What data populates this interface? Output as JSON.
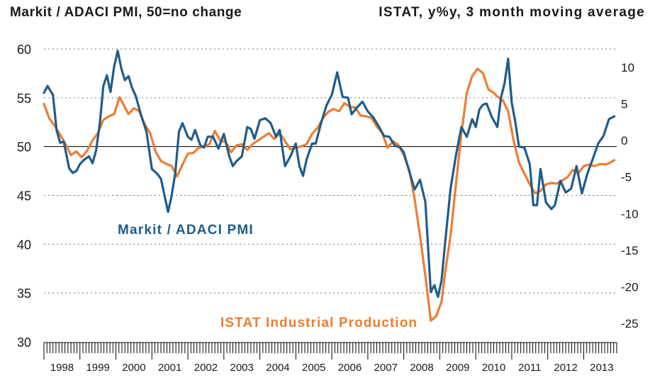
{
  "chart_data": {
    "type": "line",
    "title_left": "Markit / ADACI PMI, 50=no change",
    "title_right": "ISTAT, y%y, 3 month moving average",
    "left_axis": {
      "ylim": [
        30,
        60
      ],
      "ticks": [
        30,
        35,
        40,
        45,
        50,
        55,
        60
      ]
    },
    "right_axis": {
      "ylim": [
        -27.5,
        12.5
      ],
      "ticks": [
        10,
        5,
        0,
        -5,
        -10,
        -15,
        -20,
        -25
      ]
    },
    "x_range": [
      1998.0,
      2013.917
    ],
    "x_ticks": [
      "1998",
      "1999",
      "2000",
      "2001",
      "2002",
      "2003",
      "2004",
      "2005",
      "2006",
      "2007",
      "2008",
      "2009",
      "2010",
      "2011",
      "2012",
      "2013"
    ],
    "grid": true,
    "reference_line": {
      "axis": "left",
      "value": 50
    },
    "colors": {
      "pmi": "#1f5c8c",
      "ip": "#ed7d31",
      "text": "#1a1a1a",
      "grid": "#777777"
    },
    "series": [
      {
        "name": "Markit / ADACI PMI",
        "axis": "left",
        "label_text": "Markit / ADACI PMI",
        "x": [
          1998.0,
          1998.1,
          1998.25,
          1998.35,
          1998.45,
          1998.55,
          1998.7,
          1998.8,
          1998.9,
          1999.0,
          1999.1,
          1999.25,
          1999.35,
          1999.45,
          1999.55,
          1999.65,
          1999.75,
          1999.85,
          1999.95,
          2000.05,
          2000.15,
          2000.25,
          2000.35,
          2000.45,
          2000.55,
          2000.7,
          2000.85,
          2001.0,
          2001.15,
          2001.25,
          2001.35,
          2001.45,
          2001.55,
          2001.65,
          2001.75,
          2001.85,
          2002.0,
          2002.1,
          2002.2,
          2002.35,
          2002.45,
          2002.55,
          2002.7,
          2002.85,
          2003.0,
          2003.15,
          2003.25,
          2003.35,
          2003.5,
          2003.65,
          2003.75,
          2003.85,
          2004.0,
          2004.15,
          2004.3,
          2004.45,
          2004.55,
          2004.7,
          2004.85,
          2005.0,
          2005.1,
          2005.2,
          2005.3,
          2005.45,
          2005.55,
          2005.7,
          2005.85,
          2006.0,
          2006.15,
          2006.3,
          2006.45,
          2006.55,
          2006.7,
          2006.85,
          2007.0,
          2007.15,
          2007.3,
          2007.45,
          2007.6,
          2007.75,
          2007.9,
          2008.0,
          2008.15,
          2008.3,
          2008.45,
          2008.6,
          2008.75,
          2008.85,
          2008.95,
          2009.05,
          2009.15,
          2009.3,
          2009.45,
          2009.6,
          2009.75,
          2009.9,
          2010.0,
          2010.1,
          2010.2,
          2010.3,
          2010.45,
          2010.6,
          2010.7,
          2010.8,
          2010.9,
          2011.0,
          2011.1,
          2011.2,
          2011.35,
          2011.5,
          2011.6,
          2011.7,
          2011.8,
          2011.95,
          2012.1,
          2012.2,
          2012.35,
          2012.5,
          2012.65,
          2012.8,
          2012.95,
          2013.1,
          2013.25,
          2013.4,
          2013.55,
          2013.7,
          2013.85
        ],
        "y": [
          55.5,
          56.2,
          55.3,
          51.7,
          50.4,
          50.5,
          47.8,
          47.3,
          47.5,
          48.2,
          48.6,
          49.0,
          48.3,
          49.6,
          52.3,
          56.2,
          57.3,
          55.6,
          58.2,
          59.8,
          58.0,
          56.8,
          57.2,
          56.0,
          55.2,
          53.2,
          51.5,
          47.7,
          47.2,
          46.7,
          45.0,
          43.3,
          45.0,
          47.3,
          51.5,
          52.4,
          51.0,
          50.7,
          51.7,
          50.1,
          49.9,
          51.0,
          51.0,
          49.8,
          51.3,
          49.0,
          48.0,
          48.5,
          49.0,
          52.0,
          51.8,
          50.8,
          52.7,
          52.9,
          52.4,
          51.0,
          51.7,
          48.0,
          49.0,
          50.3,
          48.0,
          47.0,
          48.7,
          50.3,
          50.3,
          52.4,
          54.2,
          55.3,
          57.6,
          55.1,
          55.0,
          53.3,
          54.0,
          54.6,
          53.6,
          53.0,
          52.1,
          51.1,
          51.0,
          50.1,
          49.9,
          49.4,
          47.5,
          45.6,
          46.6,
          44.3,
          35.1,
          35.8,
          34.6,
          36.3,
          40.2,
          45.7,
          49.1,
          52.0,
          51.0,
          52.8,
          52.0,
          53.8,
          54.3,
          54.4,
          53.0,
          52.0,
          55.0,
          56.5,
          59.0,
          54.5,
          52.5,
          50.0,
          49.9,
          48.2,
          44.0,
          44.0,
          47.7,
          44.3,
          43.6,
          44.0,
          46.5,
          45.3,
          45.7,
          48.0,
          45.2,
          47.2,
          48.7,
          50.3,
          51.1,
          52.8,
          53.1
        ]
      },
      {
        "name": "ISTAT Industrial Production",
        "axis": "right",
        "label_text": "ISTAT Industrial Production",
        "x": [
          1998.0,
          1998.15,
          1998.3,
          1998.45,
          1998.6,
          1998.75,
          1998.9,
          1999.05,
          1999.2,
          1999.35,
          1999.5,
          1999.65,
          1999.8,
          1999.95,
          2000.1,
          2000.2,
          2000.35,
          2000.5,
          2000.65,
          2000.8,
          2000.95,
          2001.1,
          2001.25,
          2001.4,
          2001.55,
          2001.7,
          2001.85,
          2002.0,
          2002.15,
          2002.3,
          2002.45,
          2002.6,
          2002.75,
          2002.9,
          2003.05,
          2003.2,
          2003.35,
          2003.5,
          2003.65,
          2003.8,
          2003.95,
          2004.1,
          2004.25,
          2004.4,
          2004.55,
          2004.7,
          2004.85,
          2005.0,
          2005.15,
          2005.3,
          2005.45,
          2005.6,
          2005.75,
          2005.9,
          2006.05,
          2006.2,
          2006.35,
          2006.5,
          2006.65,
          2006.8,
          2006.95,
          2007.1,
          2007.25,
          2007.4,
          2007.55,
          2007.7,
          2007.85,
          2008.0,
          2008.15,
          2008.3,
          2008.45,
          2008.6,
          2008.75,
          2008.9,
          2009.05,
          2009.15,
          2009.3,
          2009.45,
          2009.6,
          2009.75,
          2009.9,
          2010.05,
          2010.2,
          2010.35,
          2010.5,
          2010.6,
          2010.75,
          2010.9,
          2011.05,
          2011.2,
          2011.35,
          2011.5,
          2011.65,
          2011.8,
          2011.95,
          2012.1,
          2012.25,
          2012.4,
          2012.55,
          2012.7,
          2012.85,
          2013.0,
          2013.15,
          2013.3,
          2013.45,
          2013.6,
          2013.75,
          2013.85
        ],
        "y": [
          5.0,
          3.0,
          2.0,
          0.8,
          -0.5,
          -2.0,
          -1.5,
          -2.3,
          -1.4,
          0.0,
          1.0,
          2.8,
          3.3,
          3.6,
          5.9,
          5.0,
          3.6,
          4.4,
          4.0,
          2.2,
          1.0,
          -1.5,
          -2.8,
          -3.2,
          -3.5,
          -4.9,
          -3.3,
          -1.8,
          -1.7,
          -1.0,
          -0.8,
          -0.5,
          1.3,
          0.0,
          -0.2,
          -1.6,
          -0.7,
          -0.5,
          -1.3,
          -0.5,
          0.0,
          0.5,
          1.0,
          0.2,
          1.0,
          -0.1,
          -1.2,
          -1.0,
          -0.8,
          -0.5,
          0.9,
          1.7,
          3.0,
          3.9,
          4.3,
          4.0,
          5.1,
          4.6,
          4.5,
          3.4,
          3.3,
          3.1,
          1.9,
          1.0,
          -1.0,
          -0.1,
          -0.6,
          -2.0,
          -4.0,
          -8.0,
          -13.0,
          -18.5,
          -24.6,
          -24.0,
          -22.0,
          -18.0,
          -13.0,
          -6.0,
          1.0,
          6.5,
          8.8,
          9.8,
          9.2,
          7.0,
          6.5,
          6.0,
          5.5,
          4.0,
          0.0,
          -3.0,
          -4.5,
          -6.0,
          -7.2,
          -6.9,
          -6.0,
          -5.8,
          -5.9,
          -5.5,
          -5.0,
          -4.0,
          -4.5,
          -3.5,
          -3.3,
          -3.5,
          -3.2,
          -3.3,
          -3.0,
          -2.7
        ]
      }
    ]
  }
}
